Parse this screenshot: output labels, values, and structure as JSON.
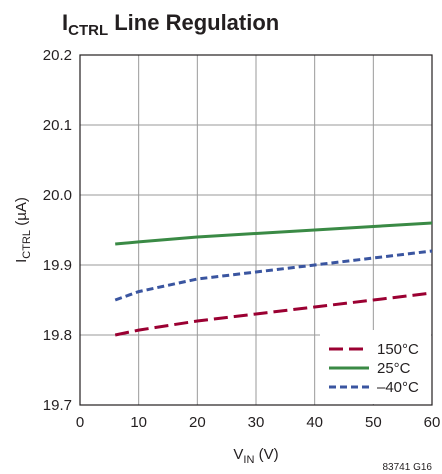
{
  "chart_data": {
    "type": "line",
    "title": {
      "main": "I",
      "sub": "CTRL",
      "rest": " Line Regulation"
    },
    "xlabel": {
      "main": "V",
      "sub": "IN",
      "rest": " (V)"
    },
    "ylabel": {
      "main": "I",
      "sub": "CTRL",
      "rest": " (µA)"
    },
    "xlim": [
      0,
      60
    ],
    "ylim": [
      19.7,
      20.2
    ],
    "x_ticks": [
      "0",
      "10",
      "20",
      "30",
      "40",
      "50",
      "60"
    ],
    "y_ticks": [
      "19.7",
      "19.8",
      "19.9",
      "20.0",
      "20.1",
      "20.2"
    ],
    "x_tick_values": [
      0,
      10,
      20,
      30,
      40,
      50,
      60
    ],
    "y_tick_values": [
      19.7,
      19.8,
      19.9,
      20.0,
      20.1,
      20.2
    ],
    "grid": true,
    "legend_position": "bottom-right",
    "series": [
      {
        "name": "150°C",
        "color": "#9b0032",
        "style": "long-dash",
        "x": [
          6,
          10,
          20,
          30,
          40,
          50,
          60
        ],
        "y": [
          19.8,
          19.807,
          19.82,
          19.83,
          19.84,
          19.85,
          19.86
        ]
      },
      {
        "name": "25°C",
        "color": "#3a8a45",
        "style": "solid",
        "x": [
          6,
          10,
          20,
          30,
          40,
          50,
          60
        ],
        "y": [
          19.93,
          19.933,
          19.94,
          19.945,
          19.95,
          19.955,
          19.96
        ]
      },
      {
        "name": "–40°C",
        "color": "#3a55a0",
        "style": "short-dash",
        "x": [
          6,
          10,
          20,
          30,
          40,
          50,
          60
        ],
        "y": [
          19.85,
          19.862,
          19.88,
          19.89,
          19.9,
          19.91,
          19.92
        ]
      }
    ],
    "figure_id": "83741 G16"
  }
}
